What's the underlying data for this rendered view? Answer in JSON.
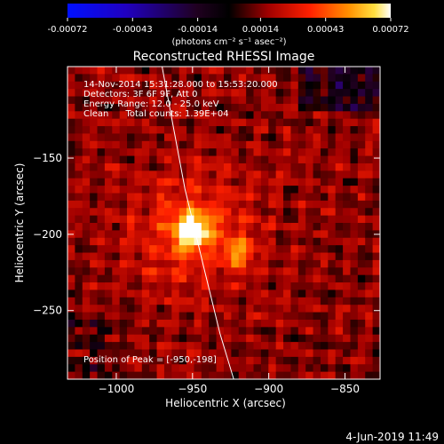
{
  "chart_data": {
    "type": "heatmap",
    "title": "Reconstructed RHESSI Image",
    "xlabel": "Heliocentric X (arcsec)",
    "ylabel": "Heliocentric Y (arcsec)",
    "xlim": [
      -1032,
      -827
    ],
    "ylim": [
      -295,
      -90
    ],
    "xticks": [
      -1000,
      -950,
      -900,
      -850
    ],
    "xtick_labels": [
      "−1000",
      "−950",
      "−900",
      "−850"
    ],
    "yticks": [
      -250,
      -200,
      -150
    ],
    "ytick_labels": [
      "−250",
      "−200",
      "−150"
    ],
    "colorbar": {
      "range": [
        -0.00072,
        0.00072
      ],
      "ticks": [
        -0.00072,
        -0.00043,
        -0.00014,
        0.00014,
        0.00043,
        0.00072
      ],
      "tick_labels": [
        "-0.00072",
        "-0.00043",
        "-0.00014",
        "0.00014",
        "0.00043",
        "0.00072"
      ],
      "unit_label": "(photons cm⁻² s⁻¹ asec⁻²)",
      "colormap": "blue-black-red-yellow-white"
    },
    "annotations": [
      "14-Nov-2014 15:31:28.000 to 15:53:20.000",
      "Detectors: 3F 6F 9F, Att 0",
      "Energy Range: 12.0 - 25.0 keV",
      "Clean      Total counts: 1.39E+04"
    ],
    "peak_label": "Position of Peak = [-950,-198]",
    "peak": {
      "x": -950,
      "y": -198
    },
    "secondary_source": {
      "x": -920,
      "y": -212
    },
    "limb_x_at_y": [
      [
        -970,
        -90
      ],
      [
        -955,
        -170
      ],
      [
        -943,
        -220
      ],
      [
        -932,
        -265
      ],
      [
        -923,
        -295
      ]
    ]
  },
  "footer": {
    "timestamp": "4-Jun-2019 11:49"
  },
  "colors": {
    "background": "#000000",
    "text": "#ffffff",
    "limb": "#ffffff"
  }
}
